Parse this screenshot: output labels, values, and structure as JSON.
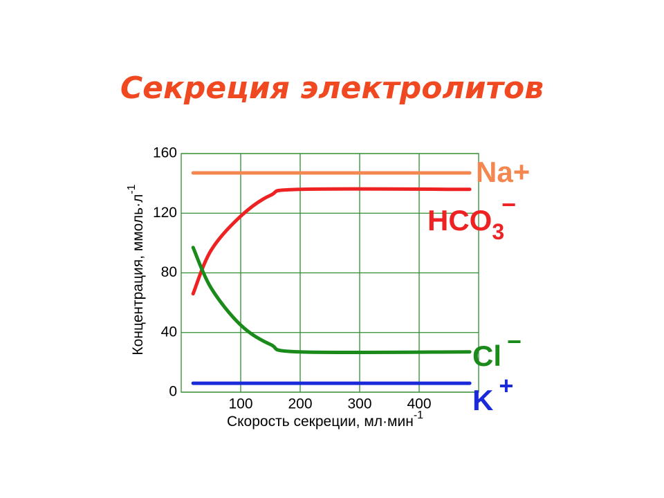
{
  "chart_data": {
    "type": "line",
    "title": "Секреция электролитов",
    "xlabel": "Скорость секреции, мл·мин",
    "xlabel_superscript": "-1",
    "ylabel": "Концентрация, ммоль·л",
    "ylabel_superscript": "-1",
    "xlim": [
      0,
      500
    ],
    "xticks": [
      100,
      200,
      300,
      400
    ],
    "ylim": [
      0,
      160
    ],
    "yticks": [
      0,
      40,
      80,
      120,
      160
    ],
    "grid": true,
    "grid_color": "#2e8b2e",
    "series": [
      {
        "name": "Na+",
        "color": "#f4874f",
        "x": [
          20,
          485
        ],
        "values": [
          147,
          147
        ]
      },
      {
        "name": "HCO",
        "subscript": "3",
        "superscript": "−",
        "color": "#ee2222",
        "x": [
          20,
          50,
          100,
          150,
          200,
          485
        ],
        "values": [
          66,
          95,
          118,
          132,
          136,
          136
        ]
      },
      {
        "name": "Cl",
        "superscript": "−",
        "color": "#1a8a1a",
        "x": [
          20,
          50,
          100,
          150,
          200,
          485
        ],
        "values": [
          97,
          70,
          45,
          32,
          27,
          27
        ]
      },
      {
        "name": "K",
        "superscript": "+",
        "color": "#1a2ad8",
        "x": [
          20,
          485
        ],
        "values": [
          6,
          6
        ]
      }
    ]
  }
}
